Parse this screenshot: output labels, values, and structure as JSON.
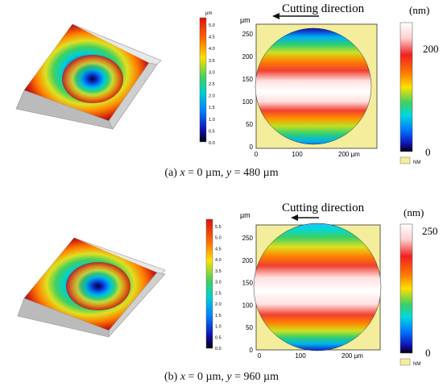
{
  "panels": [
    {
      "id": "a",
      "caption_label": "(a) ",
      "caption_x": "x",
      "caption_x_val": " = 0 µm, ",
      "caption_y": "y",
      "caption_y_val": " = 480 µm",
      "direction_label": "Cutting direction",
      "plot_unit": "µm",
      "plot_yticks": [
        "250",
        "200",
        "150",
        "100",
        "50",
        "0"
      ],
      "plot_xticks": [
        "0",
        "100",
        "200 µm"
      ],
      "bar_unit": "(nm)",
      "bar_mid": "200",
      "bar_zero": "0",
      "nm_legend": "NM",
      "small_bar_unit": "µm",
      "small_bar_ticks": [
        "5.0",
        "4.5",
        "4.0",
        "3.5",
        "3.0",
        "2.5",
        "2.0",
        "1.5",
        "1.0",
        "0.5",
        "0.0"
      ]
    },
    {
      "id": "b",
      "caption_label": "(b) ",
      "caption_x": "x",
      "caption_x_val": " = 0 µm, ",
      "caption_y": "y",
      "caption_y_val": " = 960 µm",
      "direction_label": "Cutting direction",
      "plot_unit": "µm",
      "plot_yticks": [
        "250",
        "200",
        "150",
        "100",
        "50",
        "0"
      ],
      "plot_xticks": [
        "0",
        "100",
        "200 µm"
      ],
      "bar_unit": "(nm)",
      "bar_mid": "250",
      "bar_zero": "0",
      "nm_legend": "NM",
      "small_bar_unit": "µm",
      "small_bar_ticks": [
        "5.5",
        "5.0",
        "4.5",
        "4.0",
        "3.5",
        "3.0",
        "2.5",
        "2.0",
        "1.5",
        "1.0",
        "0.5",
        "0.0"
      ]
    }
  ],
  "colors": {
    "plate": "#f4ee9c",
    "rainbow": [
      "#000022",
      "#1010c0",
      "#0090ff",
      "#00e0e0",
      "#30d070",
      "#b0e020",
      "#ffd000",
      "#ff7000",
      "#f03020",
      "#ffffff"
    ]
  }
}
